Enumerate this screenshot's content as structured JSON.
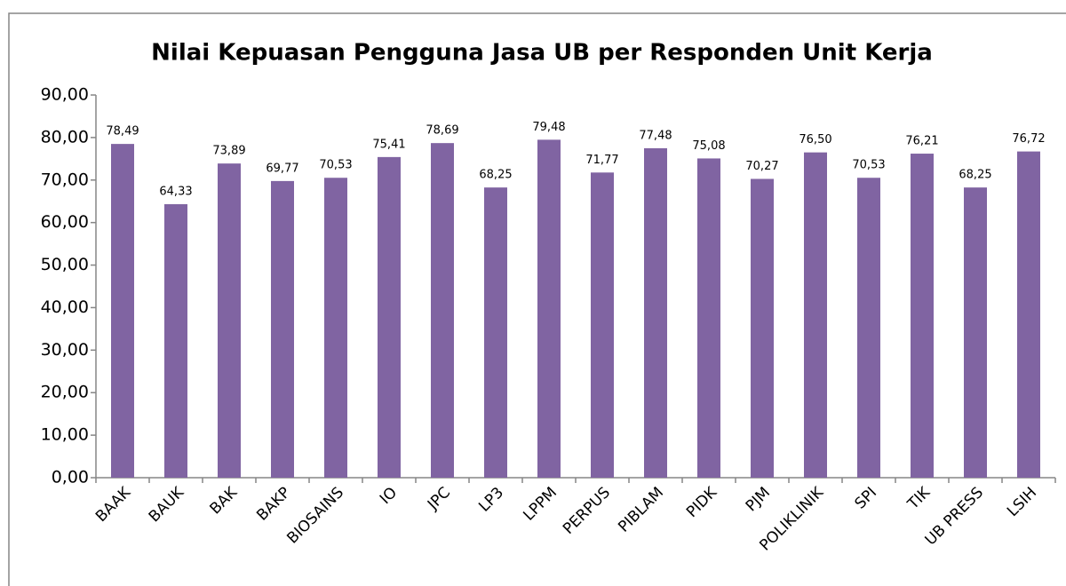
{
  "chart_data": {
    "type": "bar",
    "title": "Nilai Kepuasan Pengguna Jasa UB per Responden Unit Kerja",
    "categories": [
      "BAAK",
      "BAUK",
      "BAK",
      "BAKP",
      "BIOSAINS",
      "IO",
      "JPC",
      "LP3",
      "LPPM",
      "PERPUS",
      "PIBLAM",
      "PIDK",
      "PJM",
      "POLIKLINIK",
      "SPI",
      "TIK",
      "UB PRESS",
      "LSIH"
    ],
    "values": [
      78.49,
      64.33,
      73.89,
      69.77,
      70.53,
      75.41,
      78.69,
      68.25,
      79.48,
      71.77,
      77.48,
      75.08,
      70.27,
      76.5,
      70.53,
      76.21,
      68.25,
      76.72
    ],
    "value_labels": [
      "78,49",
      "64,33",
      "73,89",
      "69,77",
      "70,53",
      "75,41",
      "78,69",
      "68,25",
      "79,48",
      "71,77",
      "77,48",
      "75,08",
      "70,27",
      "76,50",
      "70,53",
      "76,21",
      "68,25",
      "76,72"
    ],
    "color": "#8064a2",
    "ylim": [
      0,
      90
    ],
    "yticks": [
      {
        "value": 0,
        "label": "0,00"
      },
      {
        "value": 10,
        "label": "10,00"
      },
      {
        "value": 20,
        "label": "20,00"
      },
      {
        "value": 30,
        "label": "30,00"
      },
      {
        "value": 40,
        "label": "40,00"
      },
      {
        "value": 50,
        "label": "50,00"
      },
      {
        "value": 60,
        "label": "60,00"
      },
      {
        "value": 70,
        "label": "70,00"
      },
      {
        "value": 80,
        "label": "80,00"
      },
      {
        "value": 90,
        "label": "90,00"
      }
    ],
    "grid": false
  }
}
